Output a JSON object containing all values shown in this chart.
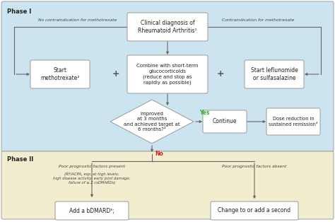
{
  "fig_w": 4.74,
  "fig_h": 3.14,
  "dpi": 100,
  "bg_color_phase1": "#cce4f0",
  "bg_color_phase2": "#f2edce",
  "box_facecolor": "#ffffff",
  "box_edgecolor": "#999999",
  "arrow_color": "#555555",
  "line_color": "#666666",
  "yes_color": "#3aaa35",
  "no_color": "#cc2222",
  "text_color": "#222222",
  "italic_color": "#444444",
  "phase1_label": "Phase I",
  "phase2_label": "Phase II",
  "diagnosis_text": "Clinical diagnosis of\nRheumatoid Arthritis¹",
  "methotrexate_text": "Start\nmethotrexate²",
  "glucocorticoids_text": "Combine with short-term\nglucocorticoids\n(reduce and stop as\nrapidly as possible)",
  "leflunomide_text": "Start leflunomide\nor sulfasalazine",
  "diamond_text": "Improved\nat 3 months\nand achieved target at\n6 months?³",
  "continue_text": "Continue",
  "dose_text": "Dose reduction in\nsustained remission⁴",
  "bdmard_text": "Add a bDMARD⁵;",
  "change_text": "Change to or add a second",
  "no_contra_text": "No contraindication for methotrexate",
  "contra_text": "Contraindication for methotrexate",
  "poor_present_text": "Poor prognostic factors present",
  "poor_absent_text": "Poor prognostic factors absent",
  "poor_detail_text": "(RF/ACPA, esp. at high levels;\nhigh disease activity; early joint damage;\nfailure of ≥ 2 csDMARDs)",
  "yes_text": "Yes",
  "no_text": "No"
}
